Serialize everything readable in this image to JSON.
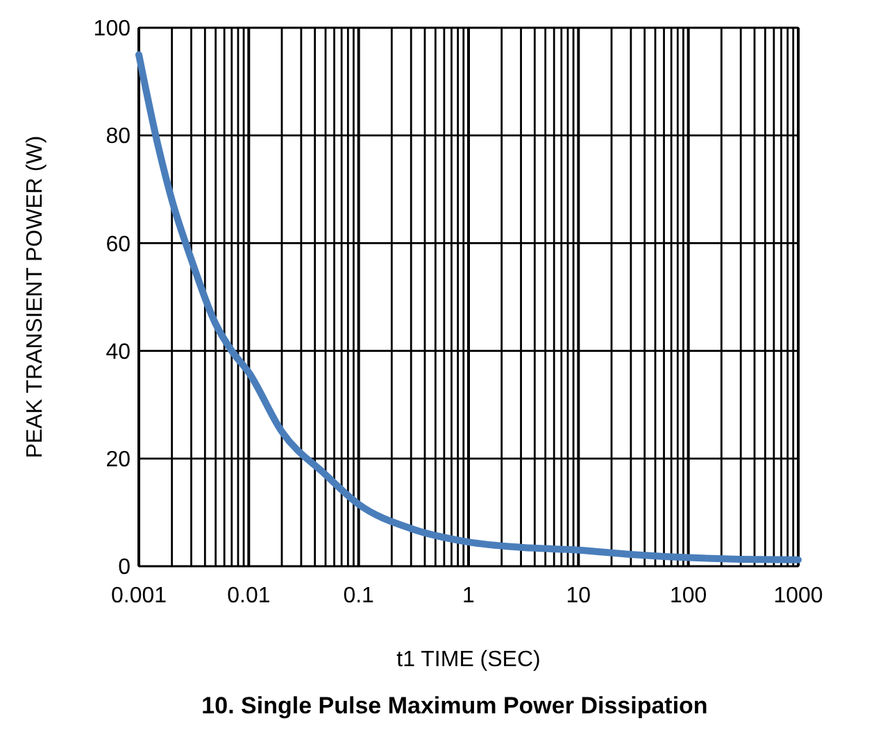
{
  "chart_data": {
    "type": "line",
    "title": "10. Single Pulse Maximum Power Dissipation",
    "xlabel": "t1 TIME (SEC)",
    "ylabel": "PEAK TRANSIENT POWER (W)",
    "log": "x",
    "grid": true,
    "marker": "none",
    "line_style": "solid",
    "xlim": [
      0.001,
      1000
    ],
    "ylim": [
      0,
      100
    ],
    "yticks": [
      0,
      20,
      40,
      60,
      80,
      100
    ],
    "xticks": [
      0.001,
      {
        "value": 0.002,
        "label": null
      },
      {
        "value": 0.003,
        "label": null
      },
      {
        "value": 0.004,
        "label": null
      },
      {
        "value": 0.005,
        "label": null
      },
      {
        "value": 0.006,
        "label": null
      },
      {
        "value": 0.007,
        "label": null
      },
      {
        "value": 0.008,
        "label": null
      },
      {
        "value": 0.009,
        "label": null
      },
      0.01,
      {
        "value": 0.02,
        "label": null
      },
      {
        "value": 0.03,
        "label": null
      },
      {
        "value": 0.04,
        "label": null
      },
      {
        "value": 0.05,
        "label": null
      },
      {
        "value": 0.06,
        "label": null
      },
      {
        "value": 0.07,
        "label": null
      },
      {
        "value": 0.08,
        "label": null
      },
      {
        "value": 0.09,
        "label": null
      },
      0.1,
      {
        "value": 0.2,
        "label": null
      },
      {
        "value": 0.3,
        "label": null
      },
      {
        "value": 0.4,
        "label": null
      },
      {
        "value": 0.5,
        "label": null
      },
      {
        "value": 0.6,
        "label": null
      },
      {
        "value": 0.7,
        "label": null
      },
      {
        "value": 0.8,
        "label": null
      },
      {
        "value": 0.9,
        "label": null
      },
      1,
      {
        "value": 2,
        "label": null
      },
      {
        "value": 3,
        "label": null
      },
      {
        "value": 4,
        "label": null
      },
      {
        "value": 5,
        "label": null
      },
      {
        "value": 6,
        "label": null
      },
      {
        "value": 7,
        "label": null
      },
      {
        "value": 8,
        "label": null
      },
      {
        "value": 9,
        "label": null
      },
      10,
      {
        "value": 20,
        "label": null
      },
      {
        "value": 30,
        "label": null
      },
      {
        "value": 40,
        "label": null
      },
      {
        "value": 50,
        "label": null
      },
      {
        "value": 60,
        "label": null
      },
      {
        "value": 70,
        "label": null
      },
      {
        "value": 80,
        "label": null
      },
      {
        "value": 90,
        "label": null
      },
      100,
      {
        "value": 200,
        "label": null
      },
      {
        "value": 300,
        "label": null
      },
      {
        "value": 400,
        "label": null
      },
      {
        "value": 500,
        "label": null
      },
      {
        "value": 600,
        "label": null
      },
      {
        "value": 700,
        "label": null
      },
      {
        "value": 800,
        "label": null
      },
      {
        "value": 900,
        "label": null
      },
      1000
    ],
    "series": [
      {
        "color": "#4a7ebb",
        "x": [
          0.001,
          0.0015,
          0.002,
          0.003,
          0.005,
          0.007,
          0.01,
          0.02,
          0.05,
          0.1,
          0.3,
          1,
          3,
          10,
          30,
          100,
          300,
          1000
        ],
        "values": [
          95,
          78,
          68,
          57,
          45,
          40,
          36,
          25,
          17,
          11.5,
          7,
          4.5,
          3.5,
          3,
          2.2,
          1.6,
          1.3,
          1.2
        ]
      }
    ]
  }
}
